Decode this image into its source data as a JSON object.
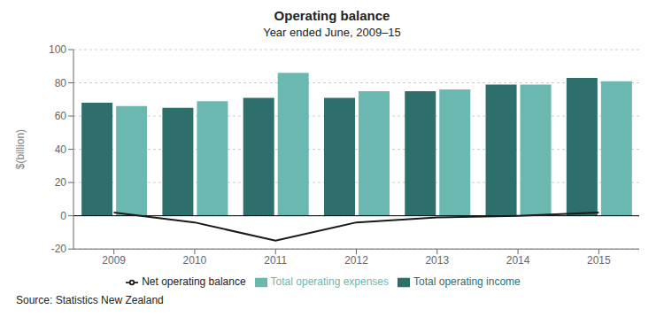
{
  "chart_data": {
    "type": "bar",
    "title": "Operating balance",
    "subtitle": "Year ended June, 2009–15",
    "ylabel": "$(billion)",
    "source": "Source: Statistics New Zealand",
    "categories": [
      "2009",
      "2010",
      "2011",
      "2012",
      "2013",
      "2014",
      "2015"
    ],
    "series": [
      {
        "name": "Total operating income",
        "type": "bar",
        "color": "#2E6F6B",
        "values": [
          68,
          65,
          71,
          71,
          75,
          79,
          83
        ]
      },
      {
        "name": "Total operating expenses",
        "type": "bar",
        "color": "#6BB8B0",
        "values": [
          66,
          69,
          86,
          75,
          76,
          79,
          81
        ]
      },
      {
        "name": "Net operating balance",
        "type": "line",
        "color": "#1a1a1a",
        "values": [
          2,
          -4,
          -15,
          -4,
          -1,
          0,
          2
        ]
      }
    ],
    "ylim": [
      -20,
      100
    ],
    "yticks": [
      -20,
      0,
      20,
      40,
      60,
      80,
      100
    ],
    "grid": true,
    "legend": "bottom"
  }
}
